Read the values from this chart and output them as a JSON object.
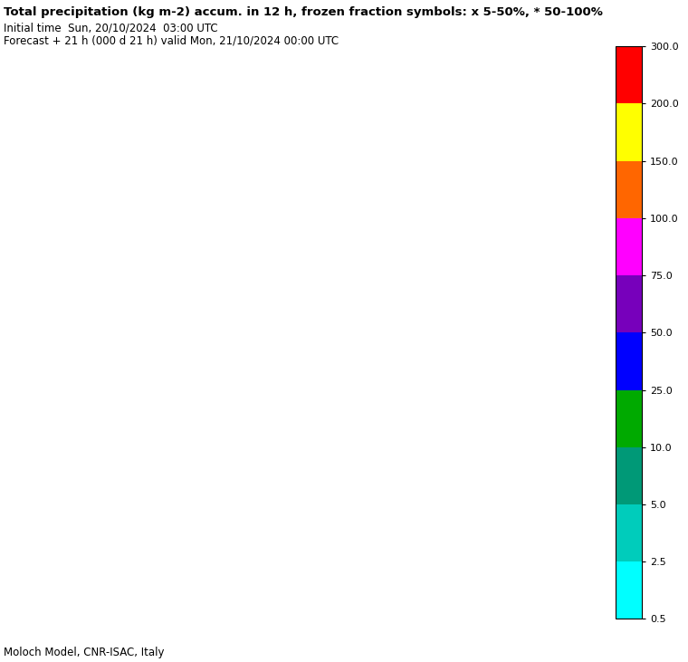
{
  "title_line1": "Total precipitation (kg m-2) accum. in 12 h, frozen fraction symbols: x 5-50%, * 50-100%",
  "title_line2": "Initial time  Sun, 20/10/2024  03:00 UTC",
  "title_line3": "Forecast + 21 h (000 d 21 h) valid Mon, 21/10/2024 00:00 UTC",
  "footer": "Moloch Model, CNR-ISAC, Italy",
  "colorbar_levels": [
    0.5,
    2.5,
    5.0,
    10.0,
    25.0,
    50.0,
    75.0,
    100.0,
    150.0,
    200.0,
    300.0
  ],
  "colorbar_colors": [
    "#00FFFF",
    "#00CCBB",
    "#009977",
    "#00AA00",
    "#0000FF",
    "#7700BB",
    "#FF00FF",
    "#FF6600",
    "#FFFF00",
    "#FF0000"
  ],
  "colorbar_tick_labels": [
    "0.5",
    "2.5",
    "5.0",
    "10.0",
    "25.0",
    "50.0",
    "75.0",
    "100.0",
    "150.0",
    "200.0",
    "300.0"
  ],
  "map_extent": [
    -6.0,
    22.0,
    35.0,
    50.0
  ],
  "gridlines_lon": [
    -5,
    0,
    5,
    10,
    15,
    20
  ],
  "gridlines_lat": [
    36,
    39,
    42,
    45,
    48
  ],
  "bg_color": "#FFFFFF",
  "land_color": "#FFFFFF",
  "ocean_color": "#FFFFFF",
  "border_color": "#000000",
  "coast_color": "#000000",
  "grid_color": "#999999",
  "fig_width": 7.6,
  "fig_height": 7.31,
  "title_fontsize": 9.5,
  "subtitle_fontsize": 8.5,
  "footer_fontsize": 8.5
}
